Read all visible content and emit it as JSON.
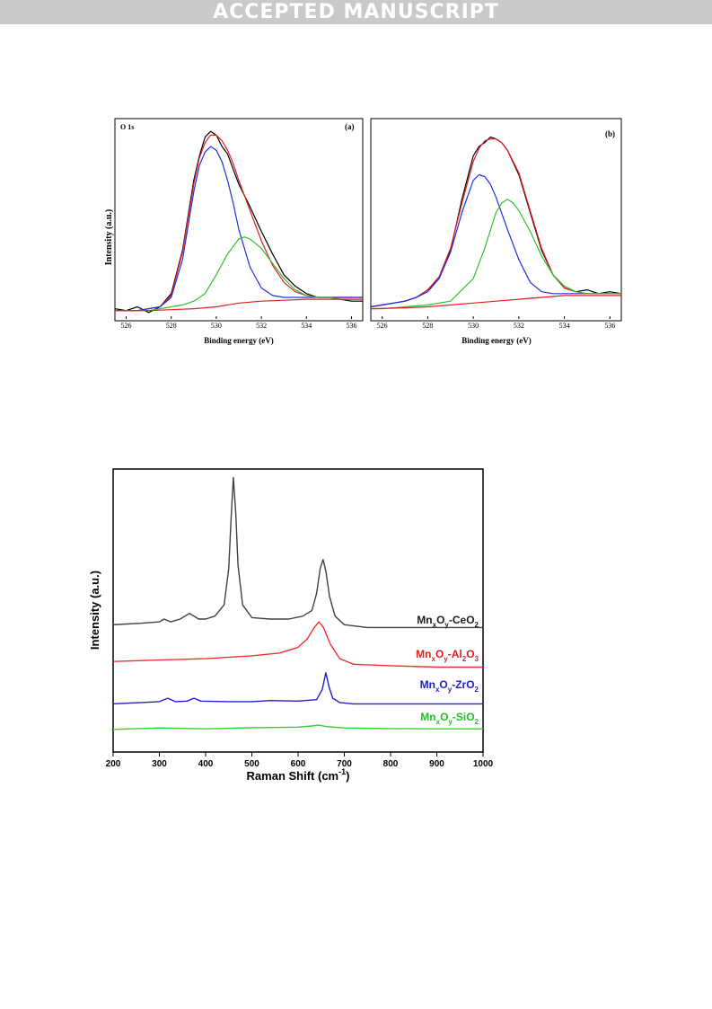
{
  "banner": {
    "text": "ACCEPTED MANUSCRIPT"
  },
  "xps_figure": {
    "ylabel": "Intensity (a.u.)",
    "panels": [
      {
        "id": "a",
        "tag": "(a)",
        "corner_label": "O 1s",
        "xlabel": "Binding energy (eV)"
      },
      {
        "id": "b",
        "tag": "(b)",
        "corner_label": "",
        "xlabel": "Binding energy (eV)"
      }
    ]
  },
  "raman_figure": {
    "xlabel": "Raman Shift (cm",
    "xlabel_sup": "-1",
    "xlabel_tail": ")",
    "ylabel": "Intensity (a.u.)"
  },
  "chart_data": [
    {
      "type": "line",
      "panel": "(a)",
      "title": "O 1s",
      "xlabel": "Binding energy (eV)",
      "ylabel": "Intensity (a.u.)",
      "xlim": [
        525.5,
        536.5
      ],
      "ylim": [
        0,
        1
      ],
      "xticks": [
        526,
        528,
        530,
        532,
        534,
        536
      ],
      "yticks": [],
      "series": [
        {
          "color": "#000000",
          "x": [
            525.5,
            526.0,
            526.5,
            527.0,
            527.5,
            528.0,
            528.5,
            529.0,
            529.25,
            529.5,
            529.75,
            530.0,
            530.25,
            530.5,
            530.75,
            531.0,
            531.5,
            532.0,
            532.5,
            533.0,
            533.5,
            534.0,
            534.5,
            535.0,
            535.5,
            536.0,
            536.5
          ],
          "y": [
            0.04,
            0.03,
            0.05,
            0.02,
            0.05,
            0.12,
            0.35,
            0.72,
            0.85,
            0.95,
            0.98,
            0.96,
            0.9,
            0.86,
            0.78,
            0.7,
            0.58,
            0.45,
            0.33,
            0.22,
            0.16,
            0.12,
            0.1,
            0.1,
            0.09,
            0.08,
            0.08
          ]
        },
        {
          "color": "#e02020",
          "x": [
            525.5,
            526.0,
            526.5,
            527.0,
            527.5,
            528.0,
            528.5,
            529.0,
            529.25,
            529.5,
            529.75,
            530.0,
            530.25,
            530.5,
            530.75,
            531.0,
            531.5,
            532.0,
            532.5,
            533.0,
            533.5,
            534.0,
            534.5,
            535.0,
            535.5,
            536.0,
            536.5
          ],
          "y": [
            0.03,
            0.03,
            0.03,
            0.04,
            0.05,
            0.11,
            0.34,
            0.7,
            0.84,
            0.92,
            0.96,
            0.96,
            0.93,
            0.88,
            0.81,
            0.72,
            0.56,
            0.4,
            0.27,
            0.18,
            0.13,
            0.11,
            0.1,
            0.1,
            0.1,
            0.1,
            0.1
          ]
        },
        {
          "color": "#2030e0",
          "x": [
            525.5,
            526.0,
            526.5,
            527.0,
            527.5,
            528.0,
            528.5,
            529.0,
            529.25,
            529.5,
            529.75,
            530.0,
            530.25,
            530.5,
            530.75,
            531.0,
            531.5,
            532.0,
            532.5,
            533.0,
            533.5,
            534.0,
            534.5,
            535.0,
            535.5,
            536.0,
            536.5
          ],
          "y": [
            0.03,
            0.03,
            0.03,
            0.04,
            0.05,
            0.1,
            0.3,
            0.66,
            0.8,
            0.87,
            0.9,
            0.88,
            0.82,
            0.72,
            0.6,
            0.46,
            0.26,
            0.15,
            0.11,
            0.1,
            0.1,
            0.1,
            0.1,
            0.1,
            0.1,
            0.1,
            0.1
          ]
        },
        {
          "color": "#30c030",
          "x": [
            525.5,
            526.0,
            526.5,
            527.0,
            527.5,
            528.0,
            528.5,
            529.0,
            529.5,
            530.0,
            530.5,
            531.0,
            531.25,
            531.5,
            532.0,
            532.5,
            533.0,
            533.5,
            534.0,
            534.5,
            535.0,
            535.5,
            536.0,
            536.5
          ],
          "y": [
            0.03,
            0.03,
            0.03,
            0.03,
            0.04,
            0.05,
            0.06,
            0.08,
            0.12,
            0.22,
            0.33,
            0.41,
            0.42,
            0.41,
            0.36,
            0.28,
            0.2,
            0.14,
            0.11,
            0.1,
            0.1,
            0.09,
            0.09,
            0.09
          ]
        },
        {
          "color": "#e02020",
          "x": [
            525.5,
            527.0,
            528.0,
            529.0,
            530.0,
            531.0,
            532.0,
            533.0,
            534.0,
            535.0,
            536.5
          ],
          "y": [
            0.03,
            0.03,
            0.035,
            0.04,
            0.05,
            0.07,
            0.08,
            0.085,
            0.09,
            0.09,
            0.09
          ]
        }
      ]
    },
    {
      "type": "line",
      "panel": "(b)",
      "xlabel": "Binding energy (eV)",
      "ylabel": "Intensity (a.u.)",
      "xlim": [
        525.5,
        536.5
      ],
      "ylim": [
        0,
        1
      ],
      "xticks": [
        526,
        528,
        530,
        532,
        534,
        536
      ],
      "yticks": [],
      "series": [
        {
          "color": "#000000",
          "x": [
            525.5,
            526.0,
            526.5,
            527.0,
            527.5,
            528.0,
            528.5,
            529.0,
            529.5,
            530.0,
            530.25,
            530.5,
            530.75,
            531.0,
            531.25,
            531.5,
            532.0,
            532.5,
            533.0,
            533.5,
            534.0,
            534.5,
            535.0,
            535.5,
            536.0,
            536.5
          ],
          "y": [
            0.05,
            0.06,
            0.07,
            0.08,
            0.1,
            0.14,
            0.2,
            0.35,
            0.62,
            0.85,
            0.9,
            0.92,
            0.95,
            0.94,
            0.92,
            0.88,
            0.75,
            0.55,
            0.35,
            0.22,
            0.15,
            0.13,
            0.14,
            0.12,
            0.13,
            0.12
          ]
        },
        {
          "color": "#e02020",
          "x": [
            525.5,
            526.0,
            526.5,
            527.0,
            527.5,
            528.0,
            528.5,
            529.0,
            529.5,
            530.0,
            530.25,
            530.5,
            530.75,
            531.0,
            531.25,
            531.5,
            532.0,
            532.5,
            533.0,
            533.5,
            534.0,
            534.5,
            535.0,
            535.5,
            536.0,
            536.5
          ],
          "y": [
            0.05,
            0.06,
            0.07,
            0.08,
            0.1,
            0.14,
            0.21,
            0.36,
            0.6,
            0.82,
            0.89,
            0.93,
            0.94,
            0.94,
            0.92,
            0.88,
            0.76,
            0.56,
            0.36,
            0.22,
            0.15,
            0.13,
            0.12,
            0.12,
            0.12,
            0.12
          ]
        },
        {
          "color": "#2030e0",
          "x": [
            525.5,
            526.0,
            526.5,
            527.0,
            527.5,
            528.0,
            528.5,
            529.0,
            529.5,
            530.0,
            530.25,
            530.5,
            530.75,
            531.0,
            531.5,
            532.0,
            532.5,
            533.0,
            533.5,
            534.0,
            534.5,
            535.0,
            535.5,
            536.0,
            536.5
          ],
          "y": [
            0.05,
            0.06,
            0.07,
            0.08,
            0.1,
            0.13,
            0.2,
            0.34,
            0.55,
            0.72,
            0.75,
            0.74,
            0.7,
            0.63,
            0.46,
            0.3,
            0.18,
            0.13,
            0.12,
            0.12,
            0.12,
            0.12,
            0.12,
            0.12,
            0.12
          ]
        },
        {
          "color": "#30c030",
          "x": [
            525.5,
            526.0,
            527.0,
            528.0,
            529.0,
            530.0,
            530.5,
            531.0,
            531.25,
            531.5,
            531.75,
            532.0,
            532.5,
            533.0,
            533.5,
            534.0,
            534.5,
            535.0,
            535.5,
            536.0,
            536.5
          ],
          "y": [
            0.04,
            0.04,
            0.05,
            0.06,
            0.08,
            0.2,
            0.36,
            0.55,
            0.6,
            0.62,
            0.6,
            0.56,
            0.45,
            0.32,
            0.22,
            0.16,
            0.13,
            0.12,
            0.12,
            0.12,
            0.12
          ]
        },
        {
          "color": "#e02020",
          "x": [
            525.5,
            527.0,
            528.0,
            529.0,
            530.0,
            531.0,
            532.0,
            533.0,
            534.0,
            535.0,
            536.5
          ],
          "y": [
            0.04,
            0.045,
            0.05,
            0.06,
            0.07,
            0.08,
            0.09,
            0.1,
            0.11,
            0.11,
            0.11
          ]
        }
      ]
    },
    {
      "type": "line",
      "xlabel": "Raman Shift (cm-1)",
      "ylabel": "Intensity (a.u.)",
      "xlim": [
        200,
        1000
      ],
      "ylim": [
        0,
        1
      ],
      "xticks": [
        200,
        300,
        400,
        500,
        600,
        700,
        800,
        900,
        1000
      ],
      "yticks": [],
      "series": [
        {
          "name": "MnxOy-CeO2",
          "color": "#404040",
          "x": [
            200,
            260,
            300,
            310,
            325,
            345,
            365,
            385,
            400,
            420,
            440,
            450,
            455,
            460,
            465,
            470,
            480,
            500,
            540,
            580,
            610,
            630,
            640,
            648,
            654,
            660,
            668,
            680,
            700,
            750,
            800,
            900,
            1000
          ],
          "y": [
            0.45,
            0.455,
            0.46,
            0.47,
            0.46,
            0.47,
            0.49,
            0.47,
            0.47,
            0.48,
            0.52,
            0.65,
            0.82,
            0.97,
            0.85,
            0.66,
            0.52,
            0.475,
            0.47,
            0.47,
            0.48,
            0.5,
            0.56,
            0.65,
            0.68,
            0.64,
            0.55,
            0.48,
            0.45,
            0.44,
            0.44,
            0.44,
            0.44
          ]
        },
        {
          "name": "MnxOy-Al2O3",
          "color": "#f03030",
          "x": [
            200,
            300,
            400,
            500,
            560,
            600,
            620,
            635,
            645,
            655,
            670,
            690,
            720,
            800,
            900,
            1000
          ],
          "y": [
            0.32,
            0.325,
            0.33,
            0.34,
            0.35,
            0.37,
            0.4,
            0.44,
            0.46,
            0.44,
            0.38,
            0.33,
            0.31,
            0.305,
            0.3,
            0.3
          ]
        },
        {
          "name": "MnxOy-ZrO2",
          "color": "#2020d0",
          "x": [
            200,
            260,
            300,
            318,
            335,
            360,
            375,
            390,
            450,
            500,
            540,
            600,
            640,
            652,
            660,
            667,
            675,
            690,
            720,
            800,
            900,
            1000
          ],
          "y": [
            0.17,
            0.175,
            0.178,
            0.19,
            0.178,
            0.18,
            0.19,
            0.18,
            0.178,
            0.178,
            0.182,
            0.18,
            0.185,
            0.22,
            0.28,
            0.23,
            0.19,
            0.175,
            0.17,
            0.17,
            0.17,
            0.17
          ]
        },
        {
          "name": "MnxOy-SiO2",
          "color": "#30d030",
          "x": [
            200,
            300,
            400,
            500,
            600,
            630,
            645,
            660,
            700,
            800,
            900,
            1000
          ],
          "y": [
            0.08,
            0.085,
            0.082,
            0.086,
            0.088,
            0.092,
            0.095,
            0.09,
            0.085,
            0.083,
            0.082,
            0.082
          ]
        }
      ],
      "legend_labels": [
        {
          "series": "MnxOy-CeO2",
          "parts": [
            "Mn",
            "x",
            "O",
            "y",
            "-CeO",
            "2"
          ],
          "color": "#202020"
        },
        {
          "series": "MnxOy-Al2O3",
          "parts": [
            "Mn",
            "x",
            "O",
            "y",
            "-Al",
            "2",
            "O",
            "3"
          ],
          "color": "#e02020"
        },
        {
          "series": "MnxOy-ZrO2",
          "parts": [
            "Mn",
            "x",
            "O",
            "y",
            "-ZrO",
            "2"
          ],
          "color": "#2020d0"
        },
        {
          "series": "MnxOy-SiO2",
          "parts": [
            "Mn",
            "x",
            "O",
            "y",
            "-SiO",
            "2"
          ],
          "color": "#20c020"
        }
      ]
    }
  ]
}
